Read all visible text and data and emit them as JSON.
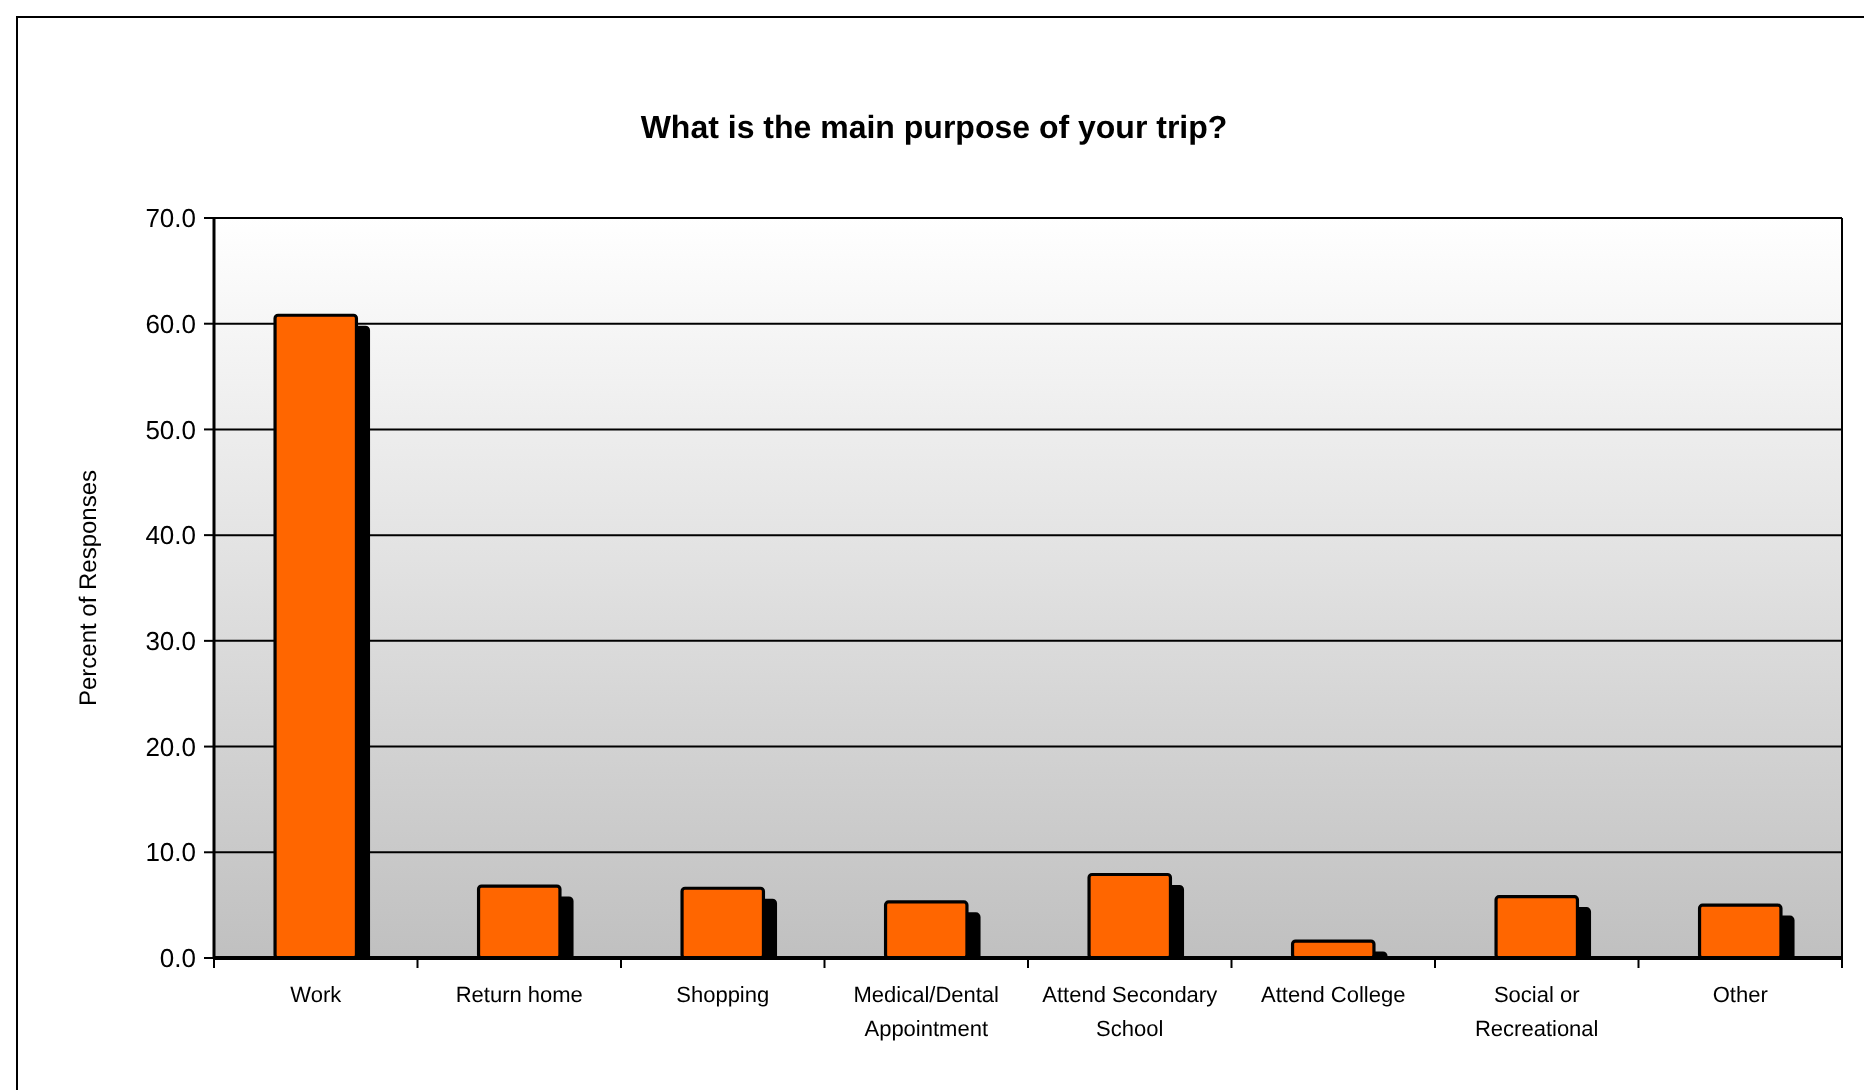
{
  "chart_data": {
    "type": "bar",
    "title": "What is the main purpose of your trip?",
    "ylabel": "Percent of Responses",
    "categories": [
      "Work",
      "Return home",
      "Shopping",
      "Medical/Dental Appointment",
      "Attend Secondary School",
      "Attend College",
      "Social or Recreational",
      "Other"
    ],
    "values": [
      60.8,
      6.8,
      6.6,
      5.3,
      7.9,
      1.6,
      5.8,
      5.0
    ],
    "color": "#ff6600",
    "ylim": [
      0,
      70
    ],
    "yticks": [
      {
        "value": 0,
        "label": "0.0"
      },
      {
        "value": 10,
        "label": "10.0"
      },
      {
        "value": 20,
        "label": "20.0"
      },
      {
        "value": 30,
        "label": "30.0"
      },
      {
        "value": 40,
        "label": "40.0"
      },
      {
        "value": 50,
        "label": "50.0"
      },
      {
        "value": 60,
        "label": "60.0"
      },
      {
        "value": 70,
        "label": "70.0"
      }
    ],
    "grid": "y"
  }
}
